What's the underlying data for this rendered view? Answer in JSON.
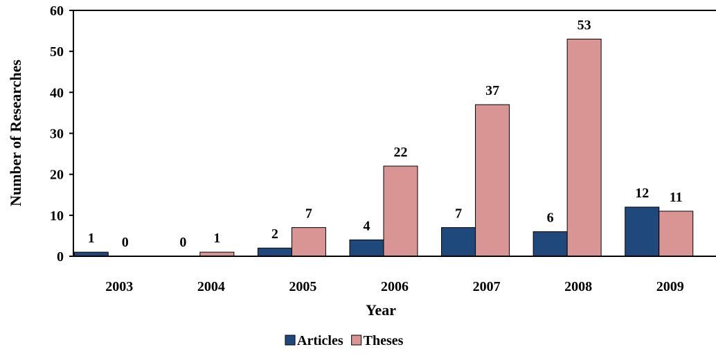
{
  "chart_data": {
    "type": "bar",
    "categories": [
      "2003",
      "2004",
      "2005",
      "2006",
      "2007",
      "2008",
      "2009"
    ],
    "series": [
      {
        "name": "Articles",
        "color": "#1f497d",
        "values": [
          1,
          0,
          2,
          4,
          7,
          6,
          12
        ]
      },
      {
        "name": "Theses",
        "color": "#d99594",
        "values": [
          0,
          1,
          7,
          22,
          37,
          53,
          11
        ]
      }
    ],
    "ylim": [
      0,
      60
    ],
    "yticks": [
      0,
      10,
      20,
      30,
      40,
      50,
      60
    ],
    "xlabel": "Year",
    "ylabel": "Number of Researches",
    "legend": "bottom"
  }
}
